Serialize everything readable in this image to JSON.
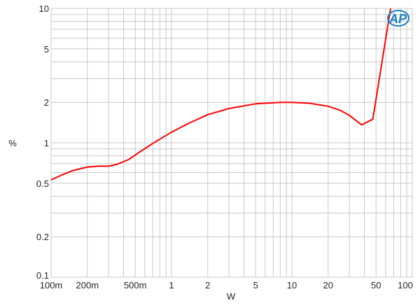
{
  "chart_data": {
    "type": "line",
    "title": "",
    "xlabel": "W",
    "ylabel": "%",
    "xscale": "log",
    "yscale": "log",
    "xlim": [
      0.1,
      100
    ],
    "ylim": [
      0.1,
      10
    ],
    "grid": true,
    "x_ticks": [
      {
        "value": 0.1,
        "label": "100m"
      },
      {
        "value": 0.2,
        "label": "200m"
      },
      {
        "value": 0.5,
        "label": "500m"
      },
      {
        "value": 1,
        "label": "1"
      },
      {
        "value": 2,
        "label": "2"
      },
      {
        "value": 5,
        "label": "5"
      },
      {
        "value": 10,
        "label": "10"
      },
      {
        "value": 20,
        "label": "20"
      },
      {
        "value": 50,
        "label": "50"
      },
      {
        "value": 100,
        "label": "100"
      }
    ],
    "y_ticks": [
      {
        "value": 0.1,
        "label": "0.1"
      },
      {
        "value": 0.2,
        "label": "0.2"
      },
      {
        "value": 0.5,
        "label": "0.5"
      },
      {
        "value": 1,
        "label": "1"
      },
      {
        "value": 2,
        "label": "2"
      },
      {
        "value": 5,
        "label": "5"
      },
      {
        "value": 10,
        "label": "10"
      }
    ],
    "series": [
      {
        "color": "#ff0000",
        "x": [
          0.1,
          0.125,
          0.15,
          0.2,
          0.25,
          0.3,
          0.35,
          0.44,
          0.55,
          0.7,
          1,
          1.4,
          2,
          3,
          5,
          8,
          10,
          14,
          20,
          25,
          30,
          38,
          47,
          66
        ],
        "y": [
          0.53,
          0.58,
          0.62,
          0.66,
          0.67,
          0.67,
          0.69,
          0.75,
          0.86,
          0.99,
          1.2,
          1.4,
          1.62,
          1.8,
          1.95,
          2.0,
          2.0,
          1.97,
          1.87,
          1.75,
          1.6,
          1.36,
          1.5,
          10
        ]
      }
    ],
    "logo": "AP",
    "colors": {
      "grid": "#c8c8c8",
      "line": "#ff0000",
      "logo": "#1a7fc1"
    }
  }
}
